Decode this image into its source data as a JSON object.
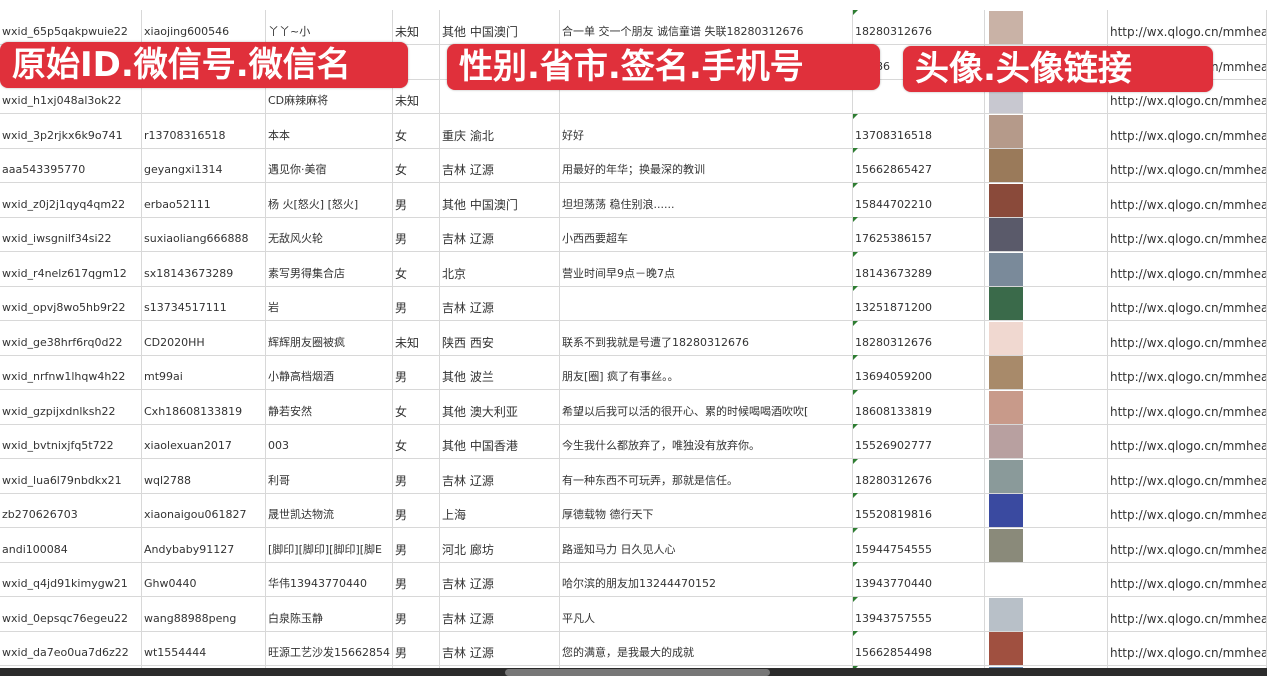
{
  "overlay_labels": [
    "原始ID.微信号.微信名",
    "性别.省市.签名.手机号",
    "头像.头像链接"
  ],
  "colors": {
    "label_bg": "#e0303b",
    "label_text": "#ffffff",
    "grid": "#d8d8d8"
  },
  "rows": [
    {
      "id": "wxid_65p5qakpwuie22",
      "wechat": "xiaojing600546",
      "name": "丫丫~小",
      "gender": "未知",
      "region": "其他 中国澳门",
      "signature": "合一单 交一个朋友 诚信童谱 失联18280312676",
      "phone": "18280312676",
      "avatar": "#c9b2a6",
      "url": "http://wx.qlogo.cn/mmhead"
    },
    {
      "id": "",
      "wechat": "",
      "name": "",
      "gender": "",
      "region": "",
      "signature": "",
      "phone": "15386",
      "avatar": "#8a9ac0",
      "url": "http://wx.qlogo.cn/mmhead"
    },
    {
      "id": "wxid_h1xj048al3ok22",
      "wechat": "",
      "name": "CD麻辣麻将",
      "gender": "未知",
      "region": "",
      "signature": "",
      "phone": "",
      "avatar": "#c8c8d0",
      "url": "http://wx.qlogo.cn/mmhead"
    },
    {
      "id": "wxid_3p2rjkx6k9o741",
      "wechat": "r13708316518",
      "name": "本本",
      "gender": "女",
      "region": "重庆 渝北",
      "signature": "好好",
      "phone": "13708316518",
      "avatar": "#b59a8a",
      "url": "http://wx.qlogo.cn/mmhead"
    },
    {
      "id": "aaa543395770",
      "wechat": "geyangxi1314",
      "name": "遇见你·美宿",
      "gender": "女",
      "region": "吉林 辽源",
      "signature": "用最好的年华；换最深的教训",
      "phone": "15662865427",
      "avatar": "#9a7a5a",
      "url": "http://wx.qlogo.cn/mmhead"
    },
    {
      "id": "wxid_z0j2j1qyq4qm22",
      "wechat": "erbao52111",
      "name": "杨 火[怒火] [怒火]",
      "gender": "男",
      "region": "其他 中国澳门",
      "signature": "坦坦荡荡 稳住别浪......",
      "phone": "15844702210",
      "avatar": "#8a4a3a",
      "url": "http://wx.qlogo.cn/mmhead"
    },
    {
      "id": "wxid_iwsgnilf34si22",
      "wechat": "suxiaoliang666888",
      "name": "无敌风火轮",
      "gender": "男",
      "region": "吉林 辽源",
      "signature": "小西西要超车",
      "phone": "17625386157",
      "avatar": "#5a5a6a",
      "url": "http://wx.qlogo.cn/mmhead"
    },
    {
      "id": "wxid_r4nelz617qgm12",
      "wechat": "sx18143673289",
      "name": "素写男得集合店",
      "gender": "女",
      "region": "北京",
      "signature": "营业时间早9点－晚7点",
      "phone": "18143673289",
      "avatar": "#7a8a9a",
      "url": "http://wx.qlogo.cn/mmhead"
    },
    {
      "id": "wxid_opvj8wo5hb9r22",
      "wechat": "s13734517111",
      "name": "岩",
      "gender": "男",
      "region": "吉林 辽源",
      "signature": "",
      "phone": "13251871200",
      "avatar": "#3a6a4a",
      "url": "http://wx.qlogo.cn/mmhead"
    },
    {
      "id": "wxid_ge38hrf6rq0d22",
      "wechat": "CD2020HH",
      "name": "辉辉朋友圈被疯",
      "gender": "未知",
      "region": "陕西 西安",
      "signature": "联系不到我就是号遭了18280312676",
      "phone": "18280312676",
      "avatar": "#f0d8d0",
      "url": "http://wx.qlogo.cn/mmhead"
    },
    {
      "id": "wxid_nrfnw1lhqw4h22",
      "wechat": "mt99ai",
      "name": "小静高档烟酒",
      "gender": "男",
      "region": "其他 波兰",
      "signature": "朋友[圈] 疯了有事丝。。",
      "phone": "13694059200",
      "avatar": "#a88a6a",
      "url": "http://wx.qlogo.cn/mmhead"
    },
    {
      "id": "wxid_gzpijxdnlksh22",
      "wechat": "Cxh18608133819",
      "name": "静若安然",
      "gender": "女",
      "region": "其他 澳大利亚",
      "signature": "希望以后我可以活的很开心、累的时候喝喝酒吹吹[",
      "phone": "18608133819",
      "avatar": "#c89a8a",
      "url": "http://wx.qlogo.cn/mmhead"
    },
    {
      "id": "wxid_bvtnixjfq5t722",
      "wechat": "xiaolexuan2017",
      "name": "003",
      "gender": "女",
      "region": "其他 中国香港",
      "signature": "今生我什么都放弃了，唯独没有放弃你。",
      "phone": "15526902777",
      "avatar": "#b8a0a0",
      "url": "http://wx.qlogo.cn/mmhead"
    },
    {
      "id": "wxid_lua6l79nbdkx21",
      "wechat": "wql2788",
      "name": "利哥",
      "gender": "男",
      "region": "吉林 辽源",
      "signature": "有一种东西不可玩弄，那就是信任。",
      "phone": "18280312676",
      "avatar": "#8a9a9a",
      "url": "http://wx.qlogo.cn/mmhead"
    },
    {
      "id": "zb270626703",
      "wechat": "xiaonaigou061827",
      "name": "晟世凯达物流",
      "gender": "男",
      "region": "上海",
      "signature": "厚德载物 德行天下",
      "phone": "15520819816",
      "avatar": "#3a4aa0",
      "url": "http://wx.qlogo.cn/mmhead"
    },
    {
      "id": "andi100084",
      "wechat": "Andybaby91127",
      "name": "[脚印][脚印][脚印][脚E",
      "gender": "男",
      "region": "河北 廊坊",
      "signature": "路遥知马力 日久见人心",
      "phone": "15944754555",
      "avatar": "#8a8a7a",
      "url": "http://wx.qlogo.cn/mmhead"
    },
    {
      "id": "wxid_q4jd91kimygw21",
      "wechat": "Ghw0440",
      "name": "华伟13943770440",
      "gender": "男",
      "region": "吉林 辽源",
      "signature": "哈尔滨的朋友加13244470152",
      "phone": "13943770440",
      "avatar": "#ffffff",
      "url": "http://wx.qlogo.cn/mmhead"
    },
    {
      "id": "wxid_0epsqc76egeu22",
      "wechat": "wang88988peng",
      "name": "白泉陈玉静",
      "gender": "男",
      "region": "吉林 辽源",
      "signature": "平凡人",
      "phone": "13943757555",
      "avatar": "#b8c0c8",
      "url": "http://wx.qlogo.cn/mmhead"
    },
    {
      "id": "wxid_da7eo0ua7d6z22",
      "wechat": "wt1554444",
      "name": "旺源工艺沙发15662854",
      "gender": "男",
      "region": "吉林 辽源",
      "signature": "您的满意，是我最大的成就",
      "phone": "15662854498",
      "avatar": "#a05040",
      "url": "http://wx.qlogo.cn/mmhead"
    },
    {
      "id": "",
      "wechat": "",
      "name": "",
      "gender": "",
      "region": "",
      "signature": "",
      "phone": "",
      "avatar": "#6a8ab0",
      "url": ""
    }
  ]
}
